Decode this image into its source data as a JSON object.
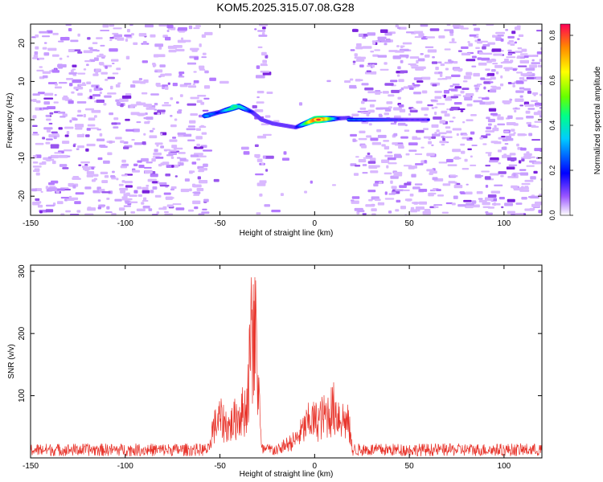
{
  "title": "KOM5.2025.315.07.08.G28",
  "chart_data": [
    {
      "type": "heatmap",
      "xlabel": "Height of straight line (km)",
      "ylabel": "Frequency (Hz)",
      "xlim": [
        -150,
        120
      ],
      "ylim": [
        -25,
        25
      ],
      "xticks": [
        -150,
        -100,
        -50,
        0,
        50,
        100
      ],
      "yticks": [
        -20,
        -10,
        0,
        10,
        20
      ],
      "colorbar": {
        "label": "Normalized spectral amplitude",
        "range": [
          0,
          0.85
        ],
        "ticks": [
          0.0,
          0.2,
          0.4,
          0.6,
          0.8
        ]
      },
      "features": [
        {
          "x": [
            -58,
            -50,
            -40,
            -33,
            -28,
            -22,
            -10,
            0,
            18
          ],
          "y": [
            1,
            2,
            3.5,
            2,
            0,
            -1,
            -2,
            0,
            0.5
          ]
        },
        {
          "x": [
            18,
            60
          ],
          "y": [
            0,
            0
          ]
        }
      ],
      "peaks": [
        {
          "x": 2,
          "y": 0,
          "value": 0.82
        },
        {
          "x": -42,
          "y": 3.5,
          "value": 0.45
        },
        {
          "x": -57,
          "y": 1,
          "value": 0.3
        }
      ]
    },
    {
      "type": "line",
      "xlabel": "Height of straight line (km)",
      "ylabel": "SNR (v/v)",
      "xlim": [
        -150,
        120
      ],
      "ylim": [
        0,
        310
      ],
      "xticks": [
        -150,
        -100,
        -50,
        0,
        50,
        100
      ],
      "yticks": [
        100,
        200,
        300
      ],
      "series_color": "#e8352c",
      "envelope": {
        "x": [
          -150,
          -56,
          -54,
          -50,
          -45,
          -40,
          -36,
          -33,
          -31,
          -28,
          -22,
          -10,
          -2,
          0,
          5,
          10,
          15,
          18,
          20,
          120
        ],
        "y": [
          12,
          14,
          55,
          75,
          60,
          85,
          95,
          245,
          230,
          12,
          12,
          35,
          75,
          70,
          80,
          95,
          75,
          65,
          14,
          12
        ]
      }
    }
  ]
}
